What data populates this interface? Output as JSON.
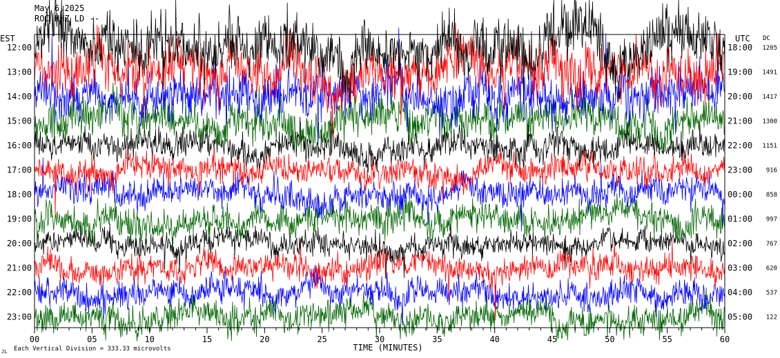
{
  "header": {
    "date": "May 6,2025",
    "station": "ROC HHZ LD --"
  },
  "labels": {
    "left_zone": "EST",
    "right_zone": "UTC",
    "right_col": "DC",
    "x_axis_title": "TIME (MINUTES)",
    "scale_note": "Each Vertical Division = 333.33 microvolts"
  },
  "colors": {
    "cycle": [
      "#000000",
      "#ff0000",
      "#0000ff",
      "#006400"
    ]
  },
  "chart_data": {
    "type": "line",
    "title": "May 6,2025",
    "subtitle": "ROC HHZ LD --",
    "xlabel": "TIME (MINUTES)",
    "x_ticks": [
      "00",
      "05",
      "10",
      "15",
      "20",
      "25",
      "30",
      "35",
      "40",
      "45",
      "50",
      "55",
      "60"
    ],
    "xlim": [
      0,
      60
    ],
    "grid": false,
    "rows": [
      {
        "est": "12:00",
        "utc": "18:00",
        "dc": "1205",
        "color": "#000000",
        "amp": 1.7
      },
      {
        "est": "13:00",
        "utc": "19:00",
        "dc": "1491",
        "color": "#ff0000",
        "amp": 1.6
      },
      {
        "est": "14:00",
        "utc": "20:00",
        "dc": "1417",
        "color": "#0000ff",
        "amp": 1.4
      },
      {
        "est": "15:00",
        "utc": "21:00",
        "dc": "1300",
        "color": "#006400",
        "amp": 1.2
      },
      {
        "est": "16:00",
        "utc": "22:00",
        "dc": "1151",
        "color": "#000000",
        "amp": 0.9
      },
      {
        "est": "17:00",
        "utc": "23:00",
        "dc": "916",
        "color": "#ff0000",
        "amp": 0.85
      },
      {
        "est": "18:00",
        "utc": "00:00",
        "dc": "858",
        "color": "#0000ff",
        "amp": 0.85
      },
      {
        "est": "19:00",
        "utc": "01:00",
        "dc": "997",
        "color": "#006400",
        "amp": 0.95
      },
      {
        "est": "20:00",
        "utc": "02:00",
        "dc": "767",
        "color": "#000000",
        "amp": 0.75
      },
      {
        "est": "21:00",
        "utc": "03:00",
        "dc": "620",
        "color": "#ff0000",
        "amp": 0.8
      },
      {
        "est": "22:00",
        "utc": "04:00",
        "dc": "537",
        "color": "#0000ff",
        "amp": 0.85
      },
      {
        "est": "23:00",
        "utc": "05:00",
        "dc": "122",
        "color": "#006400",
        "amp": 0.9
      }
    ]
  }
}
